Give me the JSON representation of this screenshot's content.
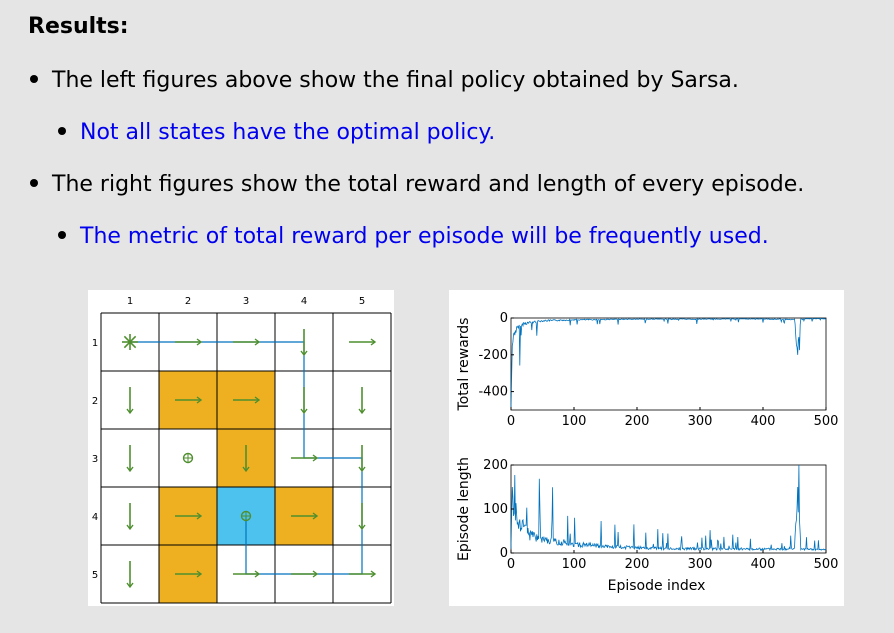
{
  "slide": {
    "title": "Results:",
    "bullets": [
      {
        "level": 1,
        "text": "The left figures above show the final policy obtained by Sarsa.",
        "color": "#000000"
      },
      {
        "level": 2,
        "text": "Not all states have the optimal policy.",
        "color": "#0000ee"
      },
      {
        "level": 1,
        "text": "The right figures show the total reward and length of every episode.",
        "color": "#000000"
      },
      {
        "level": 2,
        "text": "The metric of total reward per episode will be frequently used.",
        "color": "#0000ee"
      }
    ]
  },
  "grid": {
    "col_labels": [
      "1",
      "2",
      "3",
      "4",
      "5"
    ],
    "row_labels": [
      "1",
      "2",
      "3",
      "4",
      "5"
    ],
    "forbidden_cells": [
      [
        2,
        2
      ],
      [
        2,
        3
      ],
      [
        3,
        3
      ],
      [
        4,
        2
      ],
      [
        4,
        4
      ],
      [
        5,
        2
      ]
    ],
    "target_cell": [
      4,
      3
    ],
    "start_cell": [
      1,
      1
    ],
    "colors": {
      "forbidden": "#eeb020",
      "target": "#4ec2ee",
      "policy": "#4f8f2f",
      "path": "#0072bd"
    }
  },
  "chart_data": [
    {
      "type": "line",
      "ylabel": "Total rewards",
      "xlim": [
        0,
        500
      ],
      "ylim": [
        -500,
        0
      ],
      "x_ticks": [
        "0",
        "100",
        "200",
        "300",
        "400",
        "500"
      ],
      "y_ticks": [
        "0",
        "-200",
        "-400"
      ],
      "series": [
        {
          "color": "#0072bd",
          "x": [
            0,
            2,
            5,
            10,
            20,
            30,
            50,
            80,
            100,
            150,
            200,
            250,
            300,
            350,
            400,
            450,
            455,
            460,
            470,
            500
          ],
          "values": [
            -500,
            -150,
            -80,
            -60,
            -30,
            -25,
            -15,
            -12,
            -10,
            -8,
            -6,
            -6,
            -6,
            -5,
            -5,
            -8,
            -200,
            -5,
            -4,
            -4
          ]
        }
      ]
    },
    {
      "type": "line",
      "xlabel": "Episode index",
      "ylabel": "Episode length",
      "xlim": [
        0,
        500
      ],
      "ylim": [
        0,
        200
      ],
      "x_ticks": [
        "0",
        "100",
        "200",
        "300",
        "400",
        "500"
      ],
      "y_ticks": [
        "200",
        "100",
        "0"
      ],
      "series": [
        {
          "color": "#0072bd",
          "x": [
            0,
            2,
            5,
            10,
            20,
            30,
            50,
            80,
            100,
            150,
            200,
            250,
            300,
            350,
            400,
            450,
            455,
            460,
            470,
            500
          ],
          "values": [
            10,
            150,
            100,
            80,
            60,
            40,
            30,
            25,
            20,
            15,
            12,
            10,
            10,
            9,
            9,
            10,
            150,
            9,
            8,
            8
          ]
        }
      ]
    }
  ]
}
